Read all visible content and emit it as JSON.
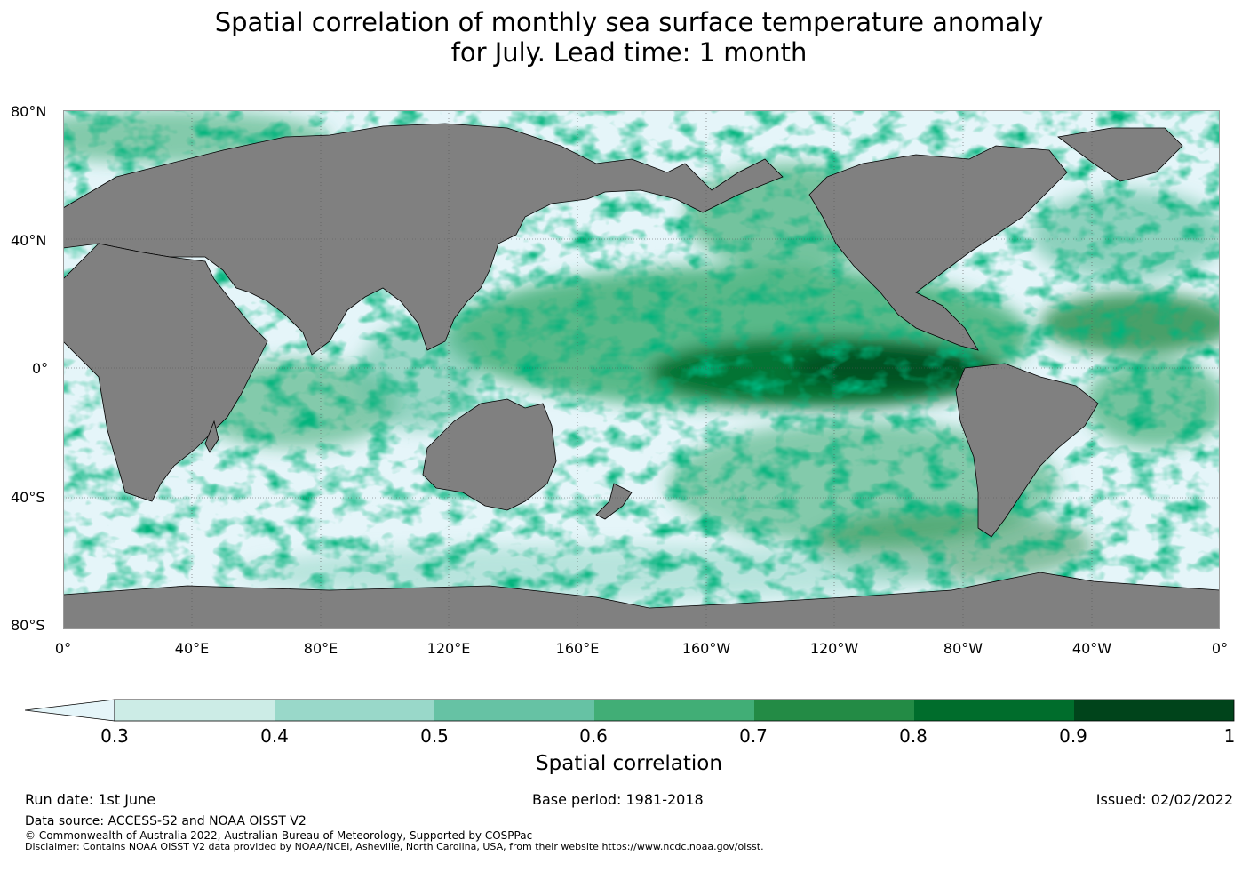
{
  "title_line1": "Spatial correlation of monthly sea surface temperature anomaly",
  "title_line2": "for July. Lead time: 1 month",
  "lat_labels": [
    "80°N",
    "40°N",
    "0°",
    "40°S",
    "80°S"
  ],
  "lon_labels": [
    "0°",
    "40°E",
    "80°E",
    "120°E",
    "160°E",
    "160°W",
    "120°W",
    "80°W",
    "40°W",
    "0°"
  ],
  "colorbar": {
    "label": "Spatial correlation",
    "ticks": [
      "0.3",
      "0.4",
      "0.5",
      "0.6",
      "0.7",
      "0.8",
      "0.9",
      "1"
    ],
    "colors": [
      "#e5f5f9",
      "#ccece6",
      "#99d8c9",
      "#66c2a4",
      "#41ae76",
      "#238b45",
      "#006d2c",
      "#00441b"
    ],
    "extend": "min"
  },
  "land_color": "#808080",
  "footer": {
    "run_date": "Run date: 1st June",
    "base_period": "Base period: 1981-2018",
    "issued": "Issued: 02/02/2022",
    "data_source": "Data source: ACCESS-S2 and NOAA OISST V2",
    "copyright": "© Commonwealth of Australia 2022, Australian Bureau of Meteorology, Supported by COSPPac",
    "disclaimer": "Disclaimer: Contains NOAA OISST V2 data provided by NOAA/NCEI, Asheville, North Carolina, USA, from their website https://www.ncdc.noaa.gov/oisst."
  }
}
